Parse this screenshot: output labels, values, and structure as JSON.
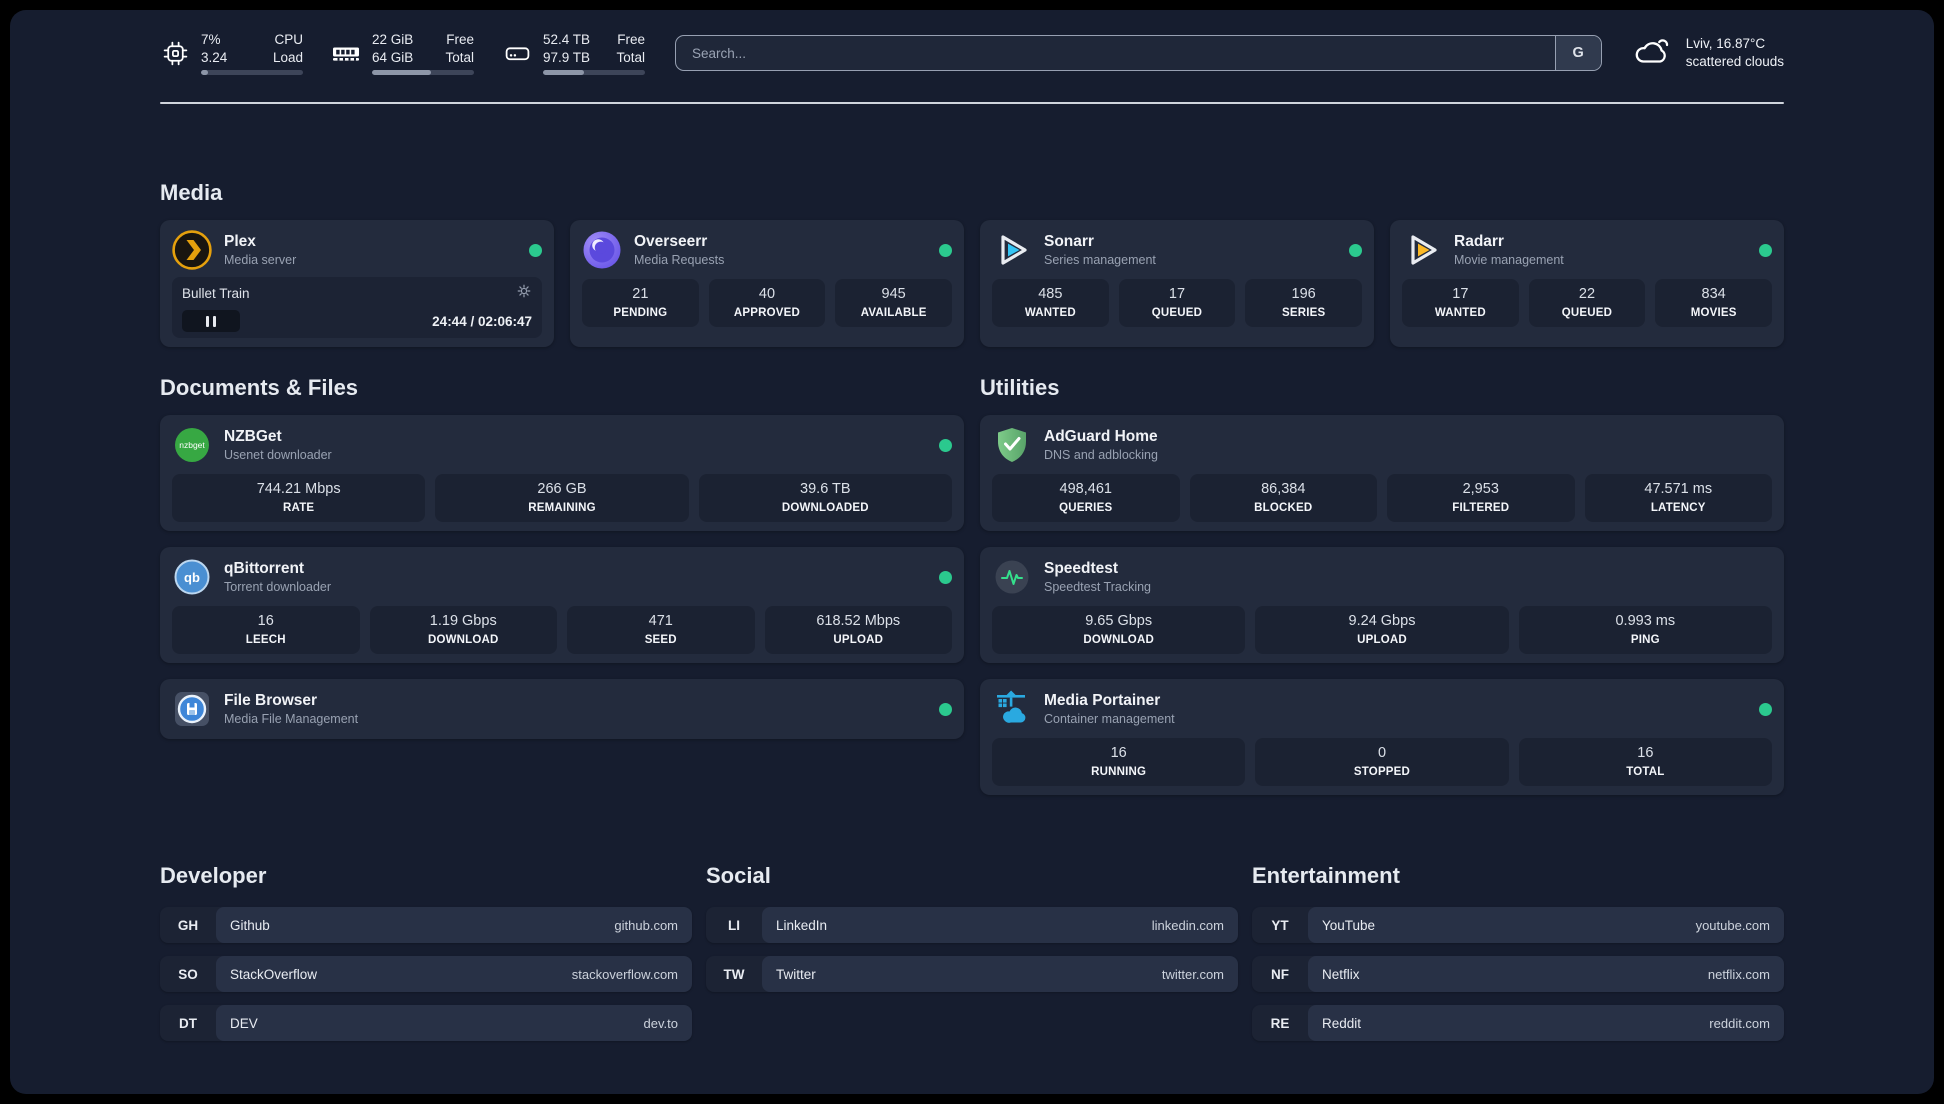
{
  "colors": {
    "status_online": "#2bc98e",
    "accent_sonarr": "#35c5f4",
    "accent_radarr": "#fcb925",
    "accent_plex": "#e5a00d"
  },
  "header": {
    "resources": [
      {
        "name": "cpu",
        "value1": "7%",
        "value2": "3.24",
        "label1": "CPU",
        "label2": "Load",
        "progress": 7
      },
      {
        "name": "memory",
        "value1": "22 GiB",
        "value2": "64 GiB",
        "label1": "Free",
        "label2": "Total",
        "progress": 58
      },
      {
        "name": "disk",
        "value1": "52.4 TB",
        "value2": "97.9 TB",
        "label1": "Free",
        "label2": "Total",
        "progress": 40
      }
    ],
    "search": {
      "placeholder": "Search...",
      "provider_button": "G"
    },
    "weather": {
      "location": "Lviv, 16.87°C",
      "condition": "scattered clouds"
    }
  },
  "media": {
    "title": "Media",
    "plex": {
      "title": "Plex",
      "subtitle": "Media server",
      "player": {
        "track": "Bullet Train",
        "time": "24:44 / 02:06:47"
      }
    },
    "overseerr": {
      "title": "Overseerr",
      "subtitle": "Media Requests",
      "stats": [
        {
          "value": "21",
          "label": "PENDING"
        },
        {
          "value": "40",
          "label": "APPROVED"
        },
        {
          "value": "945",
          "label": "AVAILABLE"
        }
      ]
    },
    "sonarr": {
      "title": "Sonarr",
      "subtitle": "Series management",
      "stats": [
        {
          "value": "485",
          "label": "WANTED"
        },
        {
          "value": "17",
          "label": "QUEUED"
        },
        {
          "value": "196",
          "label": "SERIES"
        }
      ]
    },
    "radarr": {
      "title": "Radarr",
      "subtitle": "Movie management",
      "stats": [
        {
          "value": "17",
          "label": "WANTED"
        },
        {
          "value": "22",
          "label": "QUEUED"
        },
        {
          "value": "834",
          "label": "MOVIES"
        }
      ]
    }
  },
  "documents": {
    "title": "Documents & Files",
    "nzbget": {
      "title": "NZBGet",
      "subtitle": "Usenet downloader",
      "stats": [
        {
          "value": "744.21 Mbps",
          "label": "RATE"
        },
        {
          "value": "266 GB",
          "label": "REMAINING"
        },
        {
          "value": "39.6 TB",
          "label": "DOWNLOADED"
        }
      ]
    },
    "qbittorrent": {
      "title": "qBittorrent",
      "subtitle": "Torrent downloader",
      "stats": [
        {
          "value": "16",
          "label": "LEECH"
        },
        {
          "value": "1.19 Gbps",
          "label": "DOWNLOAD"
        },
        {
          "value": "471",
          "label": "SEED"
        },
        {
          "value": "618.52 Mbps",
          "label": "UPLOAD"
        }
      ]
    },
    "filebrowser": {
      "title": "File Browser",
      "subtitle": "Media File Management"
    }
  },
  "utilities": {
    "title": "Utilities",
    "adguard": {
      "title": "AdGuard Home",
      "subtitle": "DNS and adblocking",
      "stats": [
        {
          "value": "498,461",
          "label": "QUERIES"
        },
        {
          "value": "86,384",
          "label": "BLOCKED"
        },
        {
          "value": "2,953",
          "label": "FILTERED"
        },
        {
          "value": "47.571 ms",
          "label": "LATENCY"
        }
      ]
    },
    "speedtest": {
      "title": "Speedtest",
      "subtitle": "Speedtest Tracking",
      "stats": [
        {
          "value": "9.65 Gbps",
          "label": "DOWNLOAD"
        },
        {
          "value": "9.24 Gbps",
          "label": "UPLOAD"
        },
        {
          "value": "0.993 ms",
          "label": "PING"
        }
      ]
    },
    "portainer": {
      "title": "Media Portainer",
      "subtitle": "Container management",
      "stats": [
        {
          "value": "16",
          "label": "RUNNING"
        },
        {
          "value": "0",
          "label": "STOPPED"
        },
        {
          "value": "16",
          "label": "TOTAL"
        }
      ]
    }
  },
  "bookmarks": {
    "developer": {
      "title": "Developer",
      "links": [
        {
          "abbr": "GH",
          "name": "Github",
          "url": "github.com"
        },
        {
          "abbr": "SO",
          "name": "StackOverflow",
          "url": "stackoverflow.com"
        },
        {
          "abbr": "DT",
          "name": "DEV",
          "url": "dev.to"
        }
      ]
    },
    "social": {
      "title": "Social",
      "links": [
        {
          "abbr": "LI",
          "name": "LinkedIn",
          "url": "linkedin.com"
        },
        {
          "abbr": "TW",
          "name": "Twitter",
          "url": "twitter.com"
        }
      ]
    },
    "entertainment": {
      "title": "Entertainment",
      "links": [
        {
          "abbr": "YT",
          "name": "YouTube",
          "url": "youtube.com"
        },
        {
          "abbr": "NF",
          "name": "Netflix",
          "url": "netflix.com"
        },
        {
          "abbr": "RE",
          "name": "Reddit",
          "url": "reddit.com"
        }
      ]
    }
  }
}
